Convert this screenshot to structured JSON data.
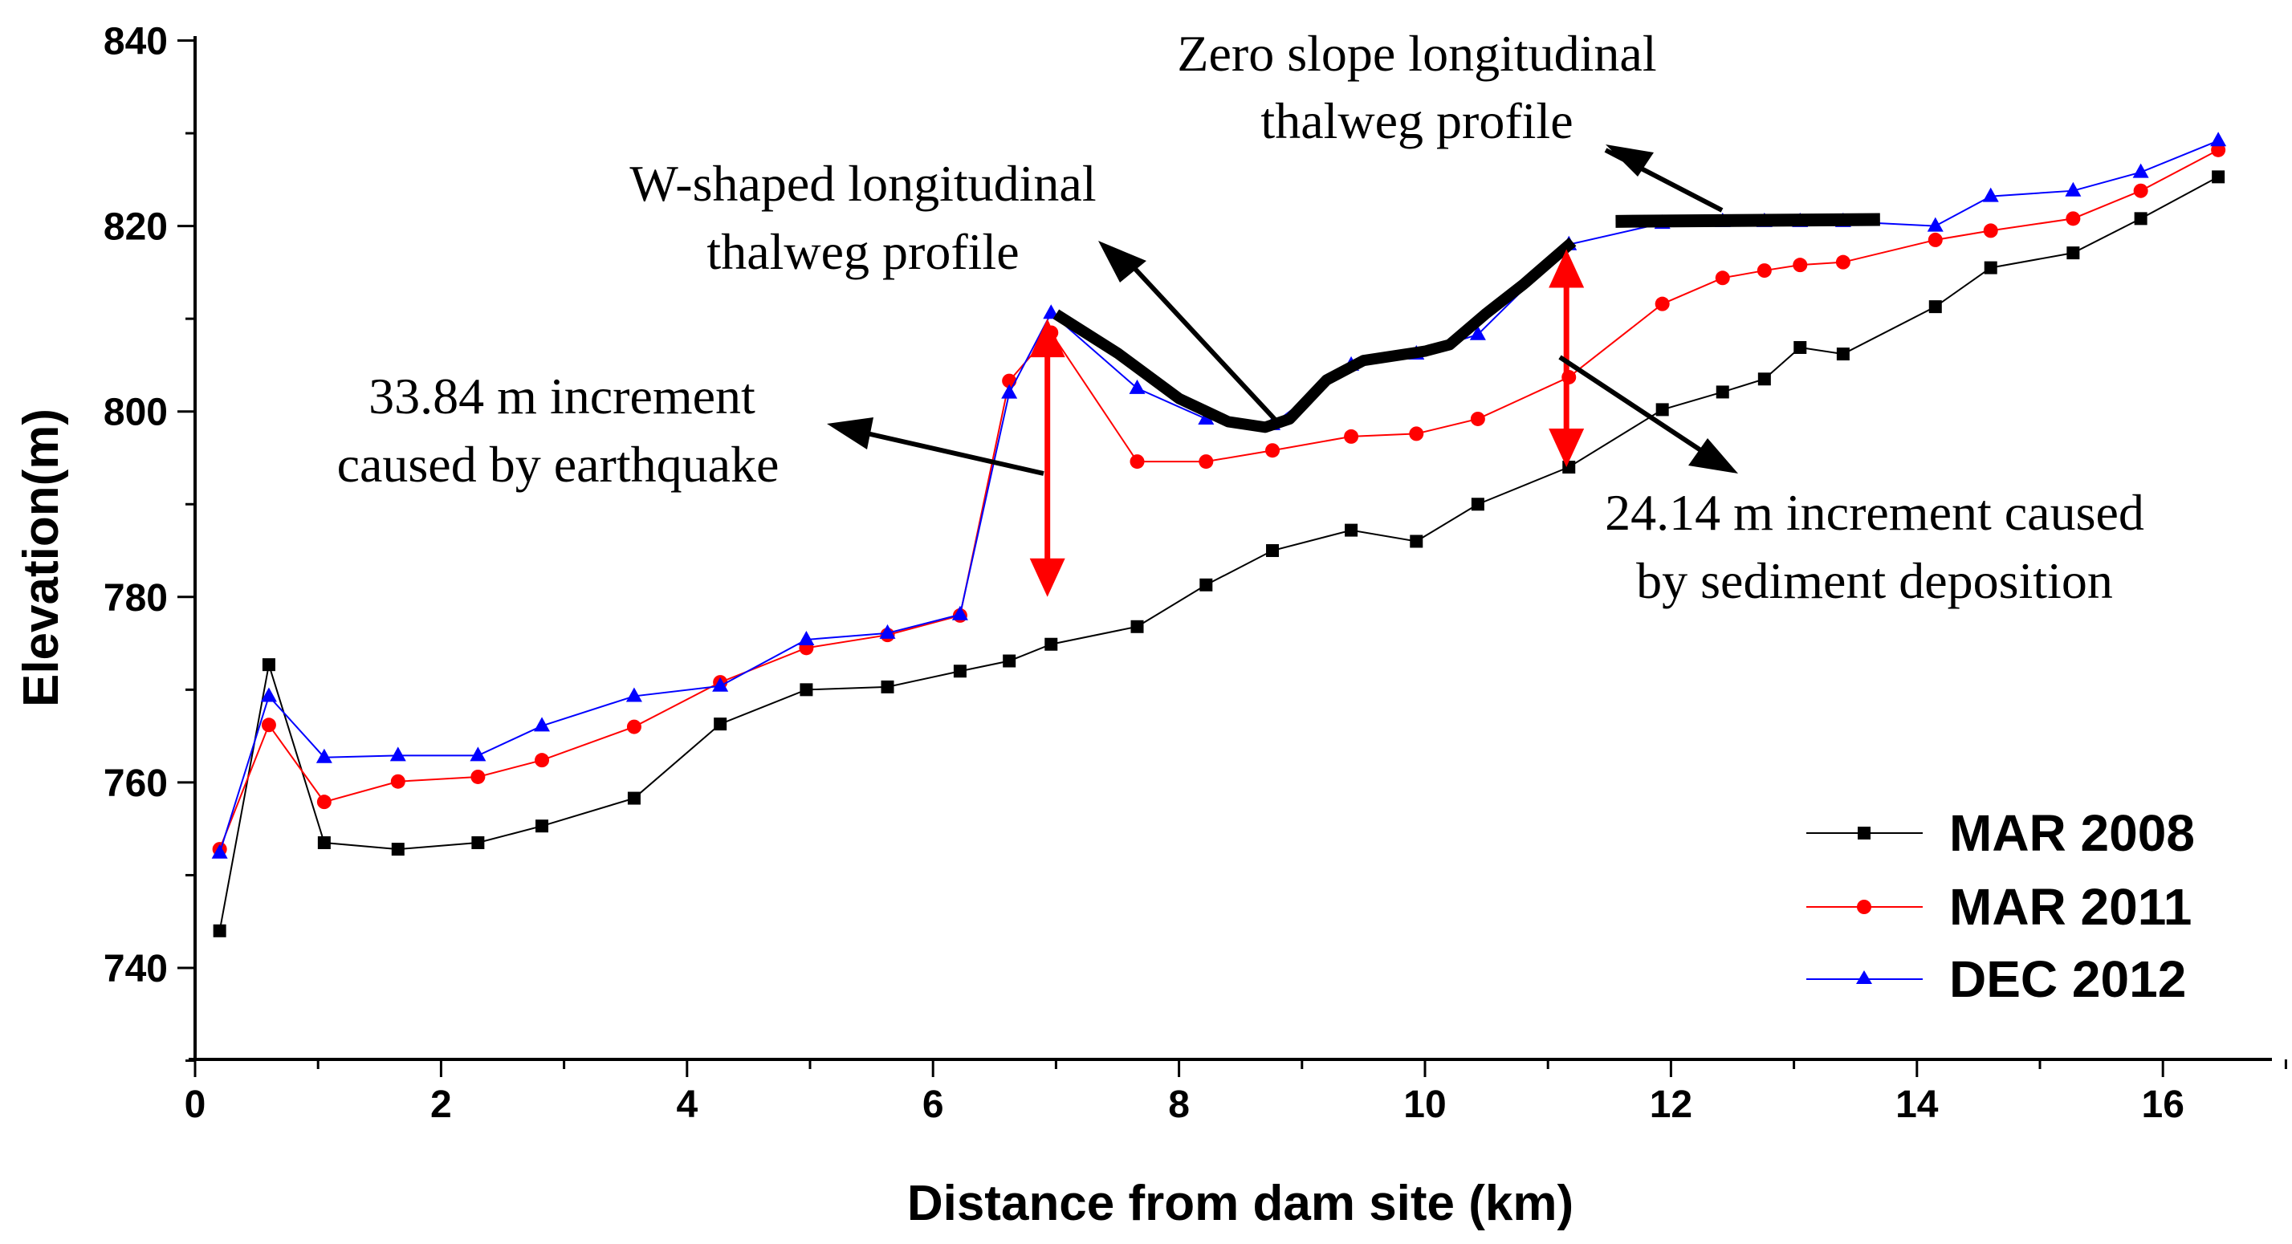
{
  "chart_data": {
    "type": "line",
    "title": "",
    "xlabel": "Distance from dam site (km)",
    "ylabel": "Elevation(m)",
    "xlim": [
      0,
      17
    ],
    "ylim": [
      730,
      840
    ],
    "xticks": [
      0,
      2,
      4,
      6,
      8,
      10,
      12,
      14,
      16
    ],
    "yticks": [
      740,
      760,
      780,
      800,
      820,
      840
    ],
    "legend_position": "bottom-right",
    "series": [
      {
        "name": "MAR 2008",
        "color": "#000000",
        "marker": "square",
        "x": [
          0.2,
          0.6,
          1.05,
          1.65,
          2.3,
          2.82,
          3.57,
          4.27,
          4.97,
          5.63,
          6.22,
          6.62,
          6.96,
          7.66,
          8.22,
          8.76,
          9.4,
          9.93,
          10.43,
          11.17,
          11.93,
          12.42,
          12.76,
          13.05,
          13.4,
          14.15,
          14.6,
          15.27,
          15.82,
          16.45
        ],
        "values": [
          744,
          772.7,
          753.5,
          752.8,
          753.5,
          755.3,
          758.3,
          766.3,
          770,
          770.3,
          772,
          773.1,
          774.9,
          776.8,
          781.3,
          785,
          787.2,
          786,
          790,
          794,
          800.2,
          802.1,
          803.5,
          806.9,
          806.2,
          811.3,
          815.5,
          817.1,
          820.8,
          825.3
        ]
      },
      {
        "name": "MAR 2011",
        "color": "#ff0000",
        "marker": "circle",
        "x": [
          0.2,
          0.6,
          1.05,
          1.65,
          2.3,
          2.82,
          3.57,
          4.27,
          4.97,
          5.63,
          6.22,
          6.62,
          6.96,
          7.66,
          8.22,
          8.76,
          9.4,
          9.93,
          10.43,
          11.17,
          11.93,
          12.42,
          12.76,
          13.05,
          13.4,
          14.15,
          14.6,
          15.27,
          15.82,
          16.45
        ],
        "values": [
          752.8,
          766.2,
          757.9,
          760.1,
          760.6,
          762.4,
          766,
          770.8,
          774.5,
          775.9,
          778,
          803.3,
          808.5,
          794.6,
          794.6,
          795.8,
          797.3,
          797.6,
          799.2,
          803.7,
          811.6,
          814.4,
          815.2,
          815.8,
          816.1,
          818.5,
          819.5,
          820.8,
          823.8,
          828.2
        ]
      },
      {
        "name": "DEC 2012",
        "color": "#0000ff",
        "marker": "triangle",
        "x": [
          0.2,
          0.6,
          1.05,
          1.65,
          2.3,
          2.82,
          3.57,
          4.27,
          4.97,
          5.63,
          6.22,
          6.62,
          6.96,
          7.66,
          8.22,
          8.76,
          9.4,
          9.93,
          10.43,
          11.17,
          11.93,
          12.42,
          12.76,
          13.05,
          13.4,
          14.15,
          14.6,
          15.27,
          15.82,
          16.45
        ],
        "values": [
          752.4,
          769.3,
          762.7,
          762.9,
          762.9,
          766.1,
          769.3,
          770.4,
          775.4,
          776.1,
          778.1,
          802,
          810.6,
          802.5,
          799.2,
          798.6,
          805,
          806.2,
          808.3,
          818,
          820.3,
          820.5,
          820.5,
          820.5,
          820.5,
          820,
          823.2,
          823.8,
          825.8,
          829.2
        ]
      }
    ],
    "thalweg_profile": {
      "w_shaped": {
        "x": [
          7.0,
          7.5,
          8.0,
          8.4,
          8.7,
          8.9,
          9.2,
          9.5,
          10.0,
          10.2,
          10.5,
          10.8,
          11.2
        ],
        "y": [
          810.5,
          806.3,
          801.4,
          798.9,
          798.3,
          799.2,
          803.4,
          805.5,
          806.5,
          807.2,
          810.6,
          813.7,
          818.3
        ]
      },
      "zero_slope": {
        "x": [
          11.55,
          13.7
        ],
        "y": [
          820.5,
          820.7
        ]
      }
    },
    "increment_arrows": [
      {
        "x": 6.93,
        "y_from": 780,
        "y_to": 810
      },
      {
        "x": 11.15,
        "y_from": 794,
        "y_to": 817.5
      }
    ],
    "annotations": {
      "zero_slope_line1": "Zero slope longitudinal",
      "zero_slope_line2": "thalweg profile",
      "w_shaped_line1": "W-shaped longitudinal",
      "w_shaped_line2": "thalweg profile",
      "increment_earthquake_line1": "33.84 m increment",
      "increment_earthquake_line2": "caused by earthquake",
      "increment_deposition_line1": "24.14 m increment caused",
      "increment_deposition_line2": "by sediment deposition"
    }
  }
}
